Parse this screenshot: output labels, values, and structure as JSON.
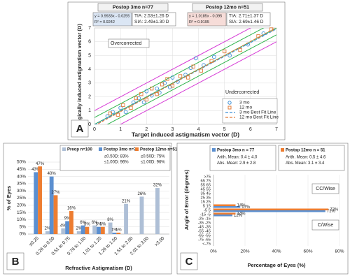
{
  "chart_data": [
    {
      "type": "scatter",
      "panel_label": "A",
      "xlabel": "Target induced astigmatism vector (D)",
      "ylabel": "Surgically induced astigmatism vector (D)",
      "xlim": [
        0,
        7
      ],
      "ylim": [
        0,
        7
      ],
      "xticks": [
        0,
        1,
        2,
        3,
        4,
        5,
        6,
        7
      ],
      "yticks": [
        0,
        1,
        2,
        3,
        4,
        5,
        6,
        7
      ],
      "grid": true,
      "annotations": [
        "Overcorrected",
        "Undercorrected"
      ],
      "reference_lines": [
        {
          "offset": 1,
          "color": "#d63bd6"
        },
        {
          "offset": 0.5,
          "color": "#2db34a"
        },
        {
          "offset": 0,
          "color": "#2db34a"
        },
        {
          "offset": -0.5,
          "color": "#2db34a"
        },
        {
          "offset": -1,
          "color": "#d63bd6"
        }
      ],
      "series": [
        {
          "name": "3 mo",
          "header": "Postop 3mo n=77",
          "color": "#3b8fd6",
          "marker": "circle",
          "equation": "y = 0.9933x - 0.0255",
          "r2": "R² = 0.9242",
          "stats": [
            "TIA: 2.53±1.26 D",
            "SIA: 2.49±1.30 D"
          ],
          "fit": {
            "name": "3 mo Best Fit Line",
            "slope": 0.9933,
            "intercept": -0.0255
          },
          "x": [
            0.5,
            0.7,
            1.0,
            1.2,
            1.5,
            1.7,
            1.9,
            2.0,
            2.2,
            2.4,
            2.5,
            2.7,
            2.9,
            3.0,
            3.2,
            3.5,
            3.7,
            3.9,
            4.2,
            4.6,
            5.2,
            5.9,
            6.5
          ],
          "y": [
            0.6,
            0.9,
            1.2,
            0.9,
            1.6,
            1.9,
            1.6,
            2.4,
            2.1,
            2.6,
            2.3,
            3.0,
            2.7,
            3.4,
            3.1,
            3.6,
            4.1,
            4.8,
            4.3,
            4.9,
            5.0,
            5.8,
            6.6
          ]
        },
        {
          "name": "12 mo",
          "header": "Postop 12mo n=51",
          "color": "#e07b39",
          "marker": "square",
          "equation": "y = 1.0185x - 0.095",
          "r2": "R² = 0.9195",
          "stats": [
            "TIA: 2.71±1.37 D",
            "SIA: 2.69±1.46 D"
          ],
          "fit": {
            "name": "12 mo Best Fit Line",
            "slope": 1.0185,
            "intercept": -0.095
          },
          "x": [
            0.6,
            0.9,
            1.1,
            1.4,
            1.6,
            1.8,
            2.0,
            2.2,
            2.4,
            2.6,
            2.8,
            3.0,
            3.3,
            3.6,
            3.8,
            4.1,
            4.5,
            5.0,
            5.6,
            6.3,
            6.8
          ],
          "y": [
            0.8,
            0.7,
            1.4,
            1.2,
            1.9,
            2.2,
            1.8,
            2.6,
            2.2,
            2.9,
            3.3,
            2.8,
            3.5,
            3.4,
            4.2,
            3.9,
            4.6,
            5.3,
            5.4,
            6.4,
            6.9
          ]
        }
      ]
    },
    {
      "type": "bar",
      "panel_label": "B",
      "xlabel": "Refractive Astigmatism (D)",
      "ylabel": "% of Eyes",
      "categories": [
        "≤0.25",
        "0.26 to 0.50",
        "0.51 to 0.75",
        "0.76 to 1.00",
        "1.01 to 1.25",
        "1.26 to 1.50",
        "1.51 to 2.00",
        "2.01 to 3.00",
        ">3.00"
      ],
      "ylim": [
        0,
        50
      ],
      "yticks": [
        {
          "value": 0,
          "label": "0%"
        },
        {
          "value": 5,
          "label": "5%"
        },
        {
          "value": 10,
          "label": "10%"
        },
        {
          "value": 15,
          "label": "15%"
        },
        {
          "value": 20,
          "label": "20%"
        },
        {
          "value": 25,
          "label": "25%"
        },
        {
          "value": 30,
          "label": "30%"
        },
        {
          "value": 35,
          "label": "35%"
        },
        {
          "value": 40,
          "label": "40%"
        },
        {
          "value": 45,
          "label": "45%"
        },
        {
          "value": 50,
          "label": "50%"
        }
      ],
      "grid": true,
      "series": [
        {
          "name": "Preop n=100",
          "color": "#aebfd6",
          "notes": [],
          "values": [
            null,
            2,
            4,
            2,
            6,
            8,
            21,
            26,
            32
          ],
          "value_labels": [
            null,
            "2%",
            "4%",
            "2%",
            "6%",
            "8%",
            "21%",
            "26%",
            "32%"
          ]
        },
        {
          "name": "Postop 3mo n=77",
          "color": "#5b8fd0",
          "notes": [
            "≤0.50D: 83%",
            "≤1.00D: 96%"
          ],
          "values": [
            43,
            40,
            9,
            6,
            5,
            1,
            null,
            null,
            null
          ],
          "value_labels": [
            "43%",
            "40%",
            "9%",
            "6%",
            "5%",
            "1%",
            null,
            null,
            null
          ]
        },
        {
          "name": "Postop 12mo n=51",
          "color": "#ed7d31",
          "notes": [
            "≤0.50D: 75%",
            "≤1.00D: 96%"
          ],
          "values": [
            47,
            27,
            16,
            5,
            5,
            1,
            null,
            null,
            null
          ],
          "value_labels": [
            "47%",
            "27%",
            "16%",
            "5%",
            "5%",
            "1%",
            null,
            null,
            null
          ]
        }
      ]
    },
    {
      "type": "hbar",
      "panel_label": "C",
      "xlabel": "Percentage of Eyes (%)",
      "ylabel": "Angle of Error (degrees)",
      "annotations": [
        "CC/Wise",
        "C/Wise"
      ],
      "categories": [
        ">75",
        "65 75",
        "55 65",
        "45 55",
        "35 45",
        "25 35",
        "15 25",
        "5 15",
        "-5 5",
        "-15 -5",
        "-25 -15",
        "-35 -25",
        "-45 -35",
        "-55 -45",
        "-65 -55",
        "-75 -65",
        "<-75"
      ],
      "xlim": [
        0,
        80
      ],
      "xticks": [
        {
          "value": 0,
          "label": "0%"
        },
        {
          "value": 20,
          "label": "20%"
        },
        {
          "value": 40,
          "label": "40%"
        },
        {
          "value": 60,
          "label": "60%"
        },
        {
          "value": 80,
          "label": "80%"
        }
      ],
      "grid": true,
      "series": [
        {
          "name": "Postop 3mo n = 77",
          "color": "#5b8fd0",
          "stats": [
            "Arith. Mean: 0.4 ± 4.0",
            "Abs. Mean: 2.9 ± 2.8"
          ],
          "values": [
            null,
            null,
            null,
            null,
            null,
            null,
            null,
            17,
            71,
            12,
            null,
            null,
            null,
            null,
            null,
            null,
            null
          ],
          "value_labels": [
            null,
            null,
            null,
            null,
            null,
            null,
            null,
            "17%",
            "71%",
            "12%",
            null,
            null,
            null,
            null,
            null,
            null,
            null
          ]
        },
        {
          "name": "Postop 12mo n = 51",
          "color": "#ed7d31",
          "stats": [
            "Arith. Mean: 0.5 ± 4.6",
            "Abs. Mean: 3.1 ± 3.4"
          ],
          "values": [
            null,
            null,
            null,
            null,
            null,
            null,
            null,
            14,
            73,
            14,
            null,
            null,
            null,
            null,
            null,
            null,
            null
          ],
          "value_labels": [
            null,
            null,
            null,
            null,
            null,
            null,
            null,
            "14%",
            "73%",
            "14%",
            null,
            null,
            null,
            null,
            null,
            null,
            null
          ]
        }
      ]
    }
  ]
}
